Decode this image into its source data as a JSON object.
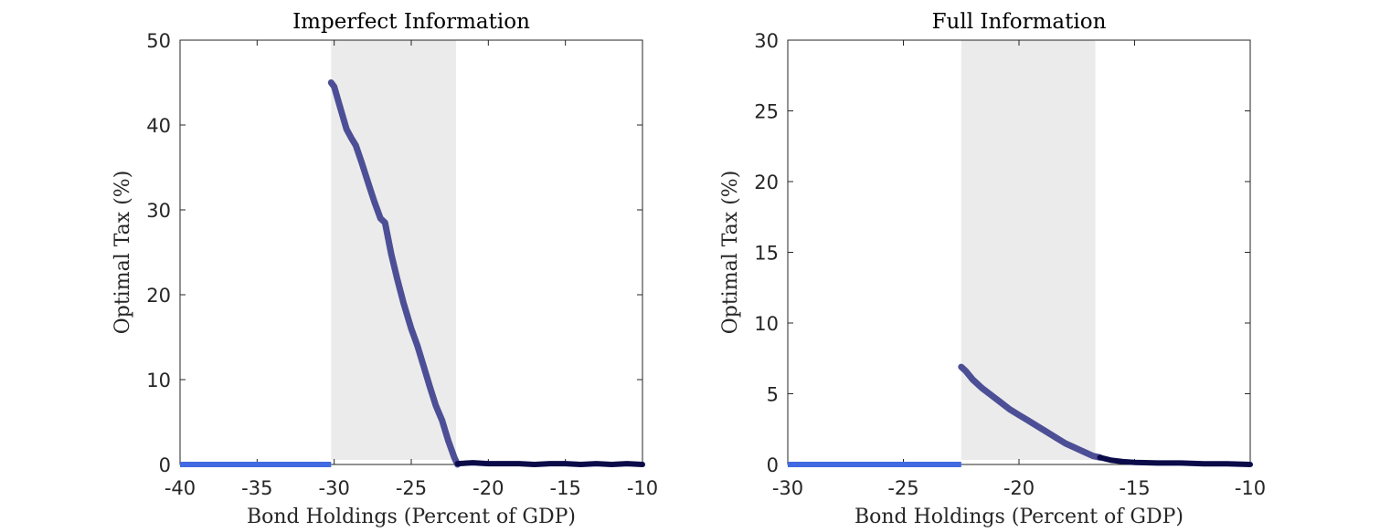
{
  "chart_data": [
    {
      "type": "line",
      "title": "Imperfect Information",
      "xlabel": "Bond Holdings (Percent of GDP)",
      "ylabel": "Optimal Tax (%)",
      "xlim": [
        -40,
        -10
      ],
      "ylim": [
        0,
        50
      ],
      "xticks": [
        -40,
        -35,
        -30,
        -25,
        -20,
        -15,
        -10
      ],
      "yticks": [
        0,
        10,
        20,
        30,
        40,
        50
      ],
      "shaded_region": [
        -30.2,
        -22.1
      ],
      "colors": {
        "shade": "#ebebeb",
        "main": "#4d4f96",
        "dark": "#0b0b4a",
        "zero": "#4169e1"
      },
      "series": [
        {
          "style": "zero",
          "x": [
            -40,
            -30.2
          ],
          "y": [
            0,
            0
          ]
        },
        {
          "style": "main",
          "x": [
            -30.2,
            -30.0,
            -29.6,
            -29.2,
            -28.9,
            -28.6,
            -28.2,
            -27.8,
            -27.4,
            -27.0,
            -26.7,
            -26.3,
            -25.9,
            -25.5,
            -25.0,
            -24.6,
            -24.2,
            -23.8,
            -23.4,
            -23.0,
            -22.6,
            -22.2,
            -22.0
          ],
          "y": [
            45.0,
            44.5,
            42.0,
            39.5,
            38.5,
            37.6,
            35.5,
            33.2,
            31.0,
            29.0,
            28.5,
            24.8,
            21.8,
            19.0,
            16.0,
            14.0,
            11.6,
            9.2,
            6.9,
            5.2,
            2.8,
            0.8,
            0.0
          ]
        },
        {
          "style": "dark",
          "x": [
            -22.0,
            -21.0,
            -20.0,
            -19.0,
            -18.0,
            -17.0,
            -16.0,
            -15.0,
            -14.0,
            -13.0,
            -12.0,
            -11.0,
            -10.0
          ],
          "y": [
            0.1,
            0.2,
            0.1,
            0.1,
            0.1,
            0.0,
            0.1,
            0.1,
            0.0,
            0.1,
            0.0,
            0.1,
            0.0
          ]
        }
      ]
    },
    {
      "type": "line",
      "title": "Full Information",
      "xlabel": "Bond Holdings (Percent of GDP)",
      "ylabel": "Optimal Tax (%)",
      "xlim": [
        -30,
        -10
      ],
      "ylim": [
        0,
        30
      ],
      "xticks": [
        -30,
        -25,
        -20,
        -15,
        -10
      ],
      "yticks": [
        0,
        5,
        10,
        15,
        20,
        25,
        30
      ],
      "shaded_region": [
        -22.5,
        -16.7
      ],
      "colors": {
        "shade": "#ebebeb",
        "main": "#4d4f96",
        "dark": "#0b0b4a",
        "zero": "#4169e1"
      },
      "series": [
        {
          "style": "zero",
          "x": [
            -30,
            -22.5
          ],
          "y": [
            0,
            0
          ]
        },
        {
          "style": "main",
          "x": [
            -22.5,
            -22.3,
            -22.0,
            -21.6,
            -21.2,
            -20.8,
            -20.4,
            -20.0,
            -19.6,
            -19.2,
            -18.8,
            -18.4,
            -18.0,
            -17.6,
            -17.2,
            -16.8,
            -16.5
          ],
          "y": [
            6.9,
            6.6,
            6.0,
            5.4,
            4.9,
            4.4,
            3.9,
            3.5,
            3.1,
            2.7,
            2.3,
            1.9,
            1.5,
            1.2,
            0.9,
            0.6,
            0.5
          ]
        },
        {
          "style": "dark",
          "x": [
            -16.5,
            -16.0,
            -15.5,
            -15.0,
            -14.0,
            -13.0,
            -12.0,
            -11.0,
            -10.0
          ],
          "y": [
            0.5,
            0.3,
            0.2,
            0.15,
            0.1,
            0.1,
            0.05,
            0.05,
            0.0
          ]
        }
      ]
    }
  ]
}
